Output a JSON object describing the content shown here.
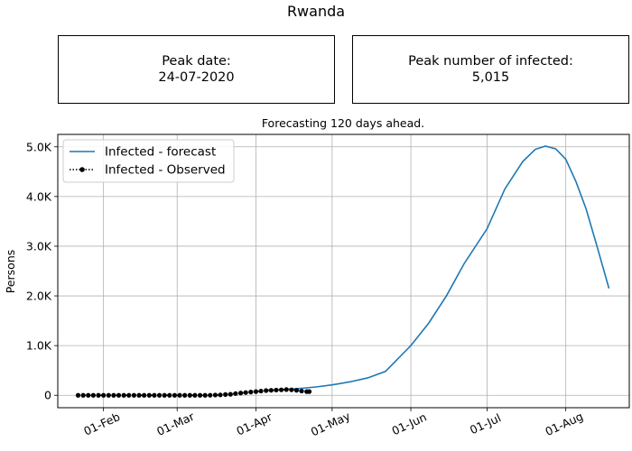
{
  "page": {
    "title": "Rwanda",
    "peak_date": {
      "label": "Peak date:",
      "value": "24-07-2020"
    },
    "peak_number": {
      "label": "Peak number of infected:",
      "value": "5,015"
    }
  },
  "colors": {
    "forecast": "#1f77b4",
    "observed": "#000000",
    "grid": "#b0b0b0"
  },
  "chart_data": {
    "type": "line",
    "title": "Forecasting 120 days ahead.",
    "ylabel": "Persons",
    "xlabel": "",
    "xlim": [
      "2020-01-14",
      "2020-08-26"
    ],
    "ylim": [
      -250,
      5250
    ],
    "grid": true,
    "legend_position": "top-left",
    "x_ticks": [
      {
        "date": "2020-02-01",
        "label": "01-Feb"
      },
      {
        "date": "2020-03-01",
        "label": "01-Mar"
      },
      {
        "date": "2020-04-01",
        "label": "01-Apr"
      },
      {
        "date": "2020-05-01",
        "label": "01-May"
      },
      {
        "date": "2020-06-01",
        "label": "01-Jun"
      },
      {
        "date": "2020-07-01",
        "label": "01-Jul"
      },
      {
        "date": "2020-08-01",
        "label": "01-Aug"
      }
    ],
    "y_ticks": [
      {
        "value": 0,
        "label": "0"
      },
      {
        "value": 1000,
        "label": "1.0K"
      },
      {
        "value": 2000,
        "label": "2.0K"
      },
      {
        "value": 3000,
        "label": "3.0K"
      },
      {
        "value": 4000,
        "label": "4.0K"
      },
      {
        "value": 5000,
        "label": "5.0K"
      }
    ],
    "series": [
      {
        "name": "Infected - forecast",
        "style": "solid",
        "points": [
          [
            "2020-04-05",
            100
          ],
          [
            "2020-04-10",
            110
          ],
          [
            "2020-04-15",
            125
          ],
          [
            "2020-04-20",
            145
          ],
          [
            "2020-04-25",
            170
          ],
          [
            "2020-05-01",
            210
          ],
          [
            "2020-05-08",
            270
          ],
          [
            "2020-05-15",
            350
          ],
          [
            "2020-05-22",
            480
          ],
          [
            "2020-06-01",
            1000
          ],
          [
            "2020-06-08",
            1450
          ],
          [
            "2020-06-15",
            2000
          ],
          [
            "2020-06-22",
            2650
          ],
          [
            "2020-07-01",
            3350
          ],
          [
            "2020-07-08",
            4150
          ],
          [
            "2020-07-15",
            4700
          ],
          [
            "2020-07-20",
            4950
          ],
          [
            "2020-07-24",
            5015
          ],
          [
            "2020-07-28",
            4960
          ],
          [
            "2020-08-01",
            4750
          ],
          [
            "2020-08-05",
            4300
          ],
          [
            "2020-08-09",
            3750
          ],
          [
            "2020-08-13",
            3050
          ],
          [
            "2020-08-18",
            2150
          ]
        ]
      },
      {
        "name": "Infected - Observed",
        "style": "dotted-marker",
        "points": [
          [
            "2020-01-22",
            0
          ],
          [
            "2020-01-24",
            0
          ],
          [
            "2020-01-26",
            0
          ],
          [
            "2020-01-28",
            0
          ],
          [
            "2020-01-30",
            0
          ],
          [
            "2020-02-01",
            0
          ],
          [
            "2020-02-03",
            0
          ],
          [
            "2020-02-05",
            0
          ],
          [
            "2020-02-07",
            0
          ],
          [
            "2020-02-09",
            0
          ],
          [
            "2020-02-11",
            0
          ],
          [
            "2020-02-13",
            0
          ],
          [
            "2020-02-15",
            0
          ],
          [
            "2020-02-17",
            0
          ],
          [
            "2020-02-19",
            0
          ],
          [
            "2020-02-21",
            0
          ],
          [
            "2020-02-23",
            0
          ],
          [
            "2020-02-25",
            0
          ],
          [
            "2020-02-27",
            0
          ],
          [
            "2020-02-29",
            0
          ],
          [
            "2020-03-02",
            0
          ],
          [
            "2020-03-04",
            0
          ],
          [
            "2020-03-06",
            0
          ],
          [
            "2020-03-08",
            0
          ],
          [
            "2020-03-10",
            0
          ],
          [
            "2020-03-12",
            0
          ],
          [
            "2020-03-14",
            1
          ],
          [
            "2020-03-16",
            5
          ],
          [
            "2020-03-18",
            8
          ],
          [
            "2020-03-20",
            15
          ],
          [
            "2020-03-22",
            20
          ],
          [
            "2020-03-24",
            35
          ],
          [
            "2020-03-26",
            45
          ],
          [
            "2020-03-28",
            55
          ],
          [
            "2020-03-30",
            65
          ],
          [
            "2020-04-01",
            75
          ],
          [
            "2020-04-03",
            85
          ],
          [
            "2020-04-05",
            95
          ],
          [
            "2020-04-07",
            100
          ],
          [
            "2020-04-09",
            105
          ],
          [
            "2020-04-11",
            110
          ],
          [
            "2020-04-13",
            115
          ],
          [
            "2020-04-15",
            110
          ],
          [
            "2020-04-17",
            100
          ],
          [
            "2020-04-19",
            85
          ],
          [
            "2020-04-21",
            75
          ],
          [
            "2020-04-22",
            75
          ]
        ]
      }
    ]
  }
}
